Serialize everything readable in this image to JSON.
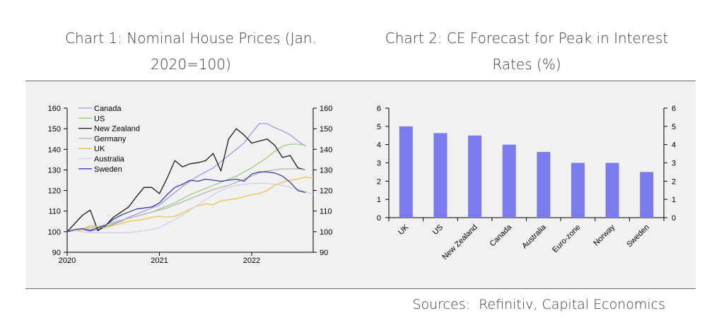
{
  "titles": {
    "chart1": "Chart 1: Nominal House Prices (Jan. 2020=100)",
    "chart2": "Chart 2: CE Forecast for Peak in Interest Rates (%)"
  },
  "source": "Sources:  Refinitiv, Capital Economics",
  "chart_data": [
    {
      "type": "line",
      "title": "Chart 1: Nominal House Prices (Jan. 2020=100)",
      "ylim": [
        90,
        160
      ],
      "yticks": [
        90,
        100,
        110,
        120,
        130,
        140,
        150,
        160
      ],
      "x_tick_labels": [
        "2020",
        "2021",
        "2022"
      ],
      "x_tick_months": [
        0,
        12,
        24
      ],
      "xlim_months": [
        0,
        32
      ],
      "legend_position": "top-left",
      "series": [
        {
          "name": "Canada",
          "color": "#9a9af0",
          "x": [
            0,
            1,
            2,
            3,
            4,
            5,
            6,
            7,
            8,
            9,
            10,
            11,
            12,
            13,
            14,
            15,
            16,
            17,
            18,
            19,
            20,
            21,
            22,
            23,
            24,
            25,
            26,
            27,
            28,
            29,
            30,
            31
          ],
          "values": [
            100,
            100.5,
            101,
            100.2,
            101,
            102,
            103.5,
            105,
            107,
            108.5,
            110,
            111.5,
            113,
            116,
            119,
            122,
            124.5,
            127,
            129,
            131,
            134,
            137,
            140,
            143,
            148,
            152.5,
            152.5,
            150.5,
            149,
            147,
            144,
            141.5
          ]
        },
        {
          "name": "US",
          "color": "#9ccd7e",
          "x": [
            0,
            1,
            2,
            3,
            4,
            5,
            6,
            7,
            8,
            9,
            10,
            11,
            12,
            13,
            14,
            15,
            16,
            17,
            18,
            19,
            20,
            21,
            22,
            23,
            24,
            25,
            26,
            27,
            28,
            29,
            30,
            31
          ],
          "values": [
            100,
            100.5,
            101,
            101,
            101.5,
            102.5,
            104,
            105.5,
            106.5,
            107.5,
            108.5,
            109.5,
            111,
            112.5,
            114,
            116,
            118,
            119.5,
            121,
            122.5,
            124,
            125.5,
            127,
            129,
            131,
            133.5,
            136,
            139,
            141.5,
            142.5,
            142.5,
            142
          ]
        },
        {
          "name": "New Zealand",
          "color": "#1a1a1a",
          "x": [
            0,
            1,
            2,
            3,
            4,
            5,
            6,
            7,
            8,
            9,
            10,
            11,
            12,
            13,
            14,
            15,
            16,
            17,
            18,
            19,
            20,
            21,
            22,
            23,
            24,
            25,
            26,
            27,
            28,
            29,
            30,
            31
          ],
          "values": [
            100,
            104,
            108,
            110.5,
            100.5,
            103,
            107,
            109.5,
            112,
            117,
            121.5,
            121.5,
            118.5,
            126,
            134.5,
            131.5,
            133,
            133.5,
            134.5,
            138,
            129.5,
            145,
            150,
            147,
            143,
            144,
            145,
            142,
            136,
            137,
            131,
            130
          ]
        },
        {
          "name": "Germany",
          "color": "#b3b3b3",
          "x": [
            0,
            1,
            2,
            3,
            4,
            5,
            6,
            7,
            8,
            9,
            10,
            11,
            12,
            13,
            14,
            15,
            16,
            17,
            18,
            19,
            20,
            21,
            22,
            23,
            24,
            25,
            26,
            27,
            28,
            29,
            30,
            31
          ],
          "values": [
            100,
            101,
            101.5,
            102,
            102.5,
            103.5,
            104.5,
            105.5,
            106.5,
            107.5,
            108.5,
            109.5,
            110.5,
            111.5,
            113,
            114.5,
            116,
            117.5,
            119,
            120.5,
            121.5,
            122.5,
            124,
            125.5,
            127,
            128.5,
            129.5,
            130,
            130.5,
            130.5,
            130.5,
            130
          ]
        },
        {
          "name": "UK",
          "color": "#f2c04e",
          "x": [
            0,
            1,
            2,
            3,
            4,
            5,
            6,
            7,
            8,
            9,
            10,
            11,
            12,
            13,
            14,
            15,
            16,
            17,
            18,
            19,
            20,
            21,
            22,
            23,
            24,
            25,
            26,
            27,
            28,
            29,
            30,
            31,
            32
          ],
          "values": [
            100,
            100.5,
            101,
            103,
            102.5,
            102,
            103,
            104,
            105,
            105.5,
            106,
            107,
            107.5,
            107,
            107.5,
            109,
            111,
            112.5,
            113.5,
            113,
            115,
            115.5,
            116,
            117,
            118,
            118.5,
            120,
            122.5,
            124,
            125,
            125.5,
            126.5,
            126
          ]
        },
        {
          "name": "Australia",
          "color": "#cfcfef",
          "x": [
            0,
            1,
            2,
            3,
            4,
            5,
            6,
            7,
            8,
            9,
            10,
            11,
            12,
            13,
            14,
            15,
            16,
            17,
            18,
            19,
            20,
            21,
            22,
            23,
            24,
            25,
            26,
            27,
            28,
            29,
            30,
            31,
            32
          ],
          "values": [
            100,
            100.5,
            100,
            99.5,
            99.5,
            99.5,
            99.5,
            99.5,
            99.5,
            100,
            100.5,
            101,
            102,
            104,
            106,
            108,
            110.5,
            113,
            115.5,
            118,
            120,
            121.5,
            122.5,
            123,
            123.5,
            123.5,
            123.5,
            123,
            122.5,
            121.5,
            120.5,
            119.5,
            118
          ]
        },
        {
          "name": "Sweden",
          "color": "#3a3ab0",
          "x": [
            0,
            1,
            2,
            3,
            4,
            5,
            6,
            7,
            8,
            9,
            10,
            11,
            12,
            13,
            14,
            15,
            16,
            17,
            18,
            19,
            20,
            21,
            22,
            23,
            24,
            25,
            26,
            27,
            28,
            29,
            30,
            31
          ],
          "values": [
            100,
            101,
            101.5,
            100.5,
            102,
            103,
            106,
            108,
            109.5,
            111,
            111.5,
            112,
            114,
            118,
            121.5,
            123,
            125,
            124.5,
            125.5,
            125,
            124.5,
            125,
            125.5,
            124.5,
            128,
            129,
            129,
            128.5,
            127,
            124,
            120,
            119
          ]
        }
      ]
    },
    {
      "type": "bar",
      "title": "Chart 2: CE Forecast for Peak in Interest Rates (%)",
      "categories": [
        "UK",
        "US",
        "New Zealand",
        "Canada",
        "Australia",
        "Euro-zone",
        "Norway",
        "Sweden"
      ],
      "values": [
        5.0,
        4.63,
        4.5,
        4.0,
        3.6,
        3.0,
        3.0,
        2.5
      ],
      "ylim": [
        0,
        6
      ],
      "yticks": [
        0,
        1,
        2,
        3,
        4,
        5,
        6
      ],
      "bar_color": "#7b7bf0"
    }
  ]
}
